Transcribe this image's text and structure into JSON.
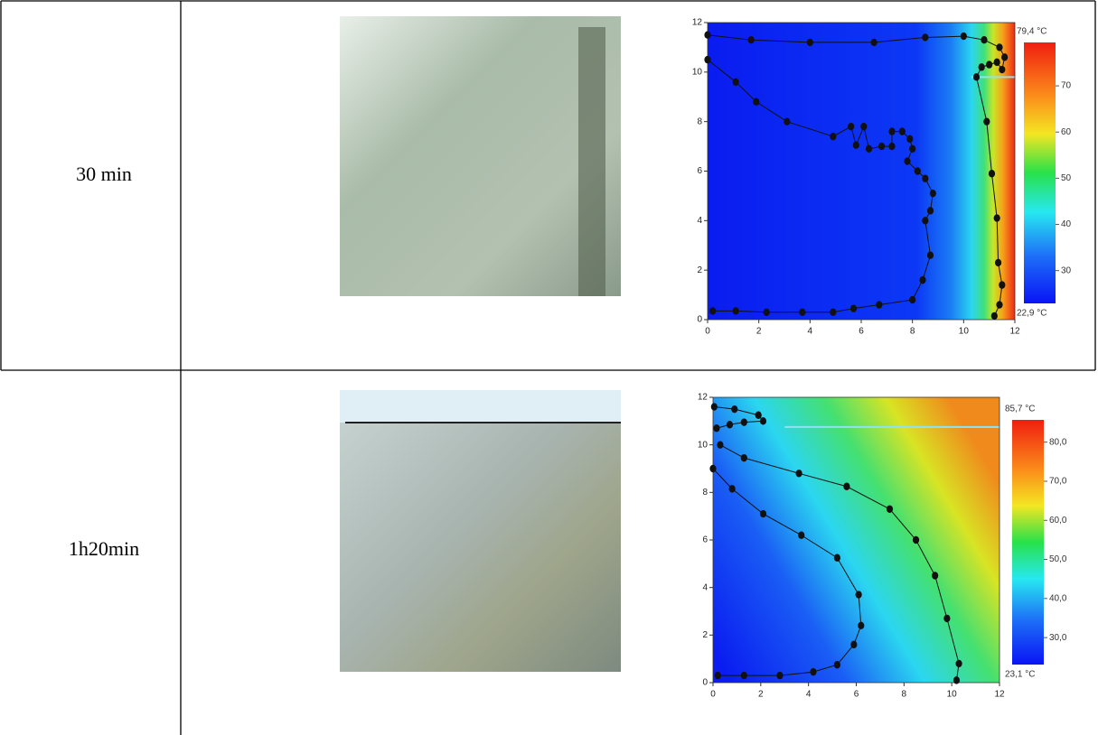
{
  "table": {
    "rows": [
      {
        "label": "30 min",
        "chart": {
          "xlim": [
            0,
            12
          ],
          "ylim": [
            0,
            12
          ],
          "xticks": [
            0,
            2,
            4,
            6,
            8,
            10,
            12
          ],
          "yticks": [
            0,
            2,
            4,
            6,
            8,
            10,
            12
          ],
          "colorbar": {
            "lim": [
              22.9,
              79.4
            ],
            "ticks": [
              30,
              40,
              50,
              60,
              70
            ],
            "max_label": "79,4 °C",
            "min_label": "22,9 °C"
          },
          "curves": [
            {
              "x": [
                0,
                1.7,
                4,
                6.5,
                8.5,
                10,
                10.8,
                11.4,
                11.6,
                11.5,
                11.3,
                11.0,
                10.7,
                10.5,
                10.9,
                11.1,
                11.3,
                11.35,
                11.5,
                11.4,
                11.2
              ],
              "y": [
                11.5,
                11.3,
                11.2,
                11.2,
                11.4,
                11.45,
                11.3,
                11.0,
                10.6,
                10.1,
                10.4,
                10.3,
                10.2,
                9.8,
                8.0,
                5.9,
                4.1,
                2.3,
                1.4,
                0.6,
                0.15
              ]
            },
            {
              "x": [
                0,
                1.1,
                1.9,
                3.1,
                4.9,
                5.6,
                5.8,
                6.1,
                6.3,
                6.8,
                7.2,
                7.2,
                7.6,
                7.9,
                8.0,
                7.8,
                8.2,
                8.5,
                8.8,
                8.7,
                8.5,
                8.7,
                8.4,
                8.0,
                6.7,
                5.7,
                4.9,
                3.7,
                2.3,
                1.1,
                0.2
              ],
              "y": [
                10.5,
                9.6,
                8.8,
                8.0,
                7.4,
                7.8,
                7.05,
                7.8,
                6.9,
                7.0,
                7.0,
                7.6,
                7.6,
                7.3,
                6.9,
                6.4,
                6.0,
                5.7,
                5.1,
                4.4,
                4.0,
                2.6,
                1.6,
                0.8,
                0.6,
                0.45,
                0.3,
                0.3,
                0.3,
                0.35,
                0.35
              ]
            }
          ]
        }
      },
      {
        "label": "1h20min",
        "chart": {
          "xlim": [
            0,
            12
          ],
          "ylim": [
            0,
            12
          ],
          "xticks": [
            0,
            2,
            4,
            6,
            8,
            10,
            12
          ],
          "yticks": [
            0,
            2,
            4,
            6,
            8,
            10,
            12
          ],
          "colorbar": {
            "lim": [
              23.1,
              85.7
            ],
            "ticks": [
              {
                "value": 30,
                "label": "30,0"
              },
              {
                "value": 40,
                "label": "40,0"
              },
              {
                "value": 50,
                "label": "50,0"
              },
              {
                "value": 60,
                "label": "60,0"
              },
              {
                "value": 70,
                "label": "70,0"
              },
              {
                "value": 80,
                "label": "80,0"
              }
            ],
            "max_label": "85,7 °C",
            "min_label": "23,1 °C"
          },
          "curves": [
            {
              "x": [
                0.05,
                0.9,
                1.9,
                2.1,
                1.3,
                0.7,
                0.15
              ],
              "y": [
                11.6,
                11.5,
                11.25,
                11.0,
                10.95,
                10.85,
                10.7
              ]
            },
            {
              "x": [
                0.3,
                1.3,
                3.6,
                5.6,
                7.4,
                8.5,
                9.3,
                9.8,
                10.3,
                10.2
              ],
              "y": [
                10.0,
                9.45,
                8.8,
                8.25,
                7.3,
                6.0,
                4.5,
                2.7,
                0.8,
                0.1
              ]
            },
            {
              "x": [
                0,
                0.8,
                2.1,
                3.7,
                5.2,
                6.1,
                6.2,
                5.9,
                5.2,
                4.2,
                2.8,
                1.3,
                0.2
              ],
              "y": [
                9.0,
                8.15,
                7.1,
                6.2,
                5.25,
                3.7,
                2.4,
                1.6,
                0.75,
                0.45,
                0.3,
                0.3,
                0.3
              ]
            }
          ]
        }
      }
    ]
  }
}
